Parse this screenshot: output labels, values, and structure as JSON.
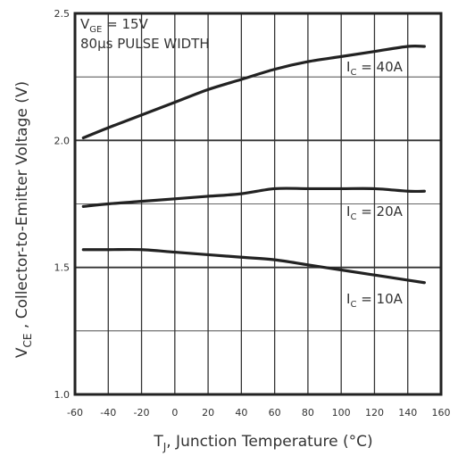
{
  "chart_data": {
    "type": "line",
    "xlabel": "T",
    "xlabel_sub": "J",
    "xlabel_rest": ", Junction Temperature (°C)",
    "ylabel": "V",
    "ylabel_sub": "CE",
    "ylabel_rest": " , Collector-to-Emitter Voltage (V)",
    "xlim": [
      -60,
      160
    ],
    "ylim": [
      1.0,
      2.5
    ],
    "x_ticks": [
      "-60",
      "-40",
      "-20",
      "0",
      "20",
      "40",
      "60",
      "80",
      "100",
      "120",
      "140",
      "160"
    ],
    "y_ticks": [
      "1.0",
      "1.5",
      "2.0",
      "2.5"
    ],
    "grid": true,
    "annotations": {
      "condition1_main": "V",
      "condition1_sub": "GE",
      "condition1_rest": "  = 15V",
      "condition2": "80µs PULSE WIDTH"
    },
    "series": [
      {
        "name": "I",
        "name_sub": "C",
        "name_rest": "  = 40A",
        "x": [
          -55,
          -40,
          -20,
          0,
          20,
          40,
          60,
          80,
          100,
          120,
          140,
          150
        ],
        "y": [
          2.01,
          2.05,
          2.1,
          2.15,
          2.2,
          2.24,
          2.28,
          2.31,
          2.33,
          2.35,
          2.37,
          2.37
        ]
      },
      {
        "name": "I",
        "name_sub": "C",
        "name_rest": "  = 20A",
        "x": [
          -55,
          -40,
          -20,
          0,
          20,
          40,
          60,
          80,
          100,
          120,
          140,
          150
        ],
        "y": [
          1.74,
          1.75,
          1.76,
          1.77,
          1.78,
          1.79,
          1.81,
          1.81,
          1.81,
          1.81,
          1.8,
          1.8
        ]
      },
      {
        "name": "I",
        "name_sub": "C",
        "name_rest": "  = 10A",
        "x": [
          -55,
          -40,
          -20,
          0,
          20,
          40,
          60,
          80,
          100,
          120,
          140,
          150
        ],
        "y": [
          1.57,
          1.57,
          1.57,
          1.56,
          1.55,
          1.54,
          1.53,
          1.51,
          1.49,
          1.47,
          1.45,
          1.44
        ]
      }
    ]
  }
}
